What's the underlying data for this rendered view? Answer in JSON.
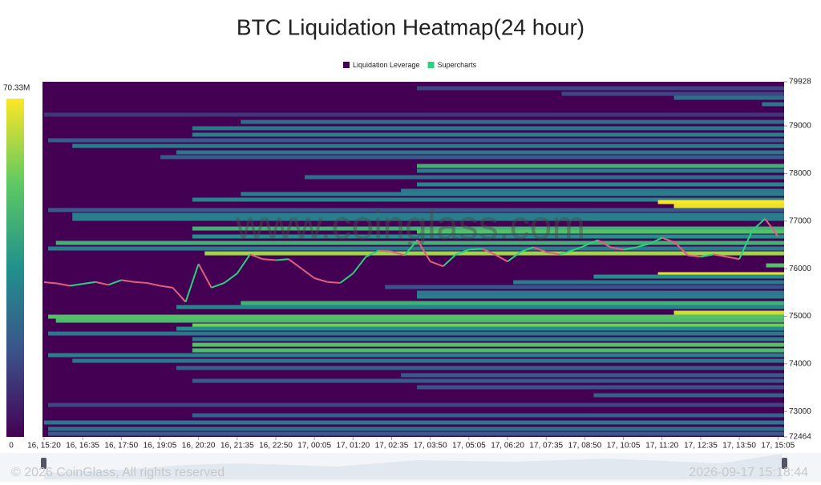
{
  "chart_data": {
    "type": "heatmap",
    "title": "BTC Liquidation Heatmap(24 hour)",
    "watermark": "www.coinglass.com",
    "footer": "© 2026 CoinGlass, All rights reserved",
    "timestamp": "2026-09-17 15:18:44",
    "xlim": [
      -3,
      1437
    ],
    "xticks": [
      {
        "value": 0,
        "label": "16, 15:20"
      },
      {
        "value": 75,
        "label": "16, 16:35"
      },
      {
        "value": 150,
        "label": "16, 17:50"
      },
      {
        "value": 225,
        "label": "16, 19:05"
      },
      {
        "value": 300,
        "label": "16, 20:20"
      },
      {
        "value": 375,
        "label": "16, 21:35"
      },
      {
        "value": 450,
        "label": "16, 22:50"
      },
      {
        "value": 525,
        "label": "17, 00:05"
      },
      {
        "value": 600,
        "label": "17, 01:20"
      },
      {
        "value": 675,
        "label": "17, 02:35"
      },
      {
        "value": 750,
        "label": "17, 03:50"
      },
      {
        "value": 825,
        "label": "17, 05:05"
      },
      {
        "value": 900,
        "label": "17, 06:20"
      },
      {
        "value": 975,
        "label": "17, 07:35"
      },
      {
        "value": 1050,
        "label": "17, 08:50"
      },
      {
        "value": 1125,
        "label": "17, 10:05"
      },
      {
        "value": 1200,
        "label": "17, 11:20"
      },
      {
        "value": 1275,
        "label": "17, 12:35"
      },
      {
        "value": 1350,
        "label": "17, 13:50"
      },
      {
        "value": 1425,
        "label": "17, 15:05"
      }
    ],
    "ylim": [
      72464,
      79928
    ],
    "yticks": [
      79928,
      79000,
      78000,
      77000,
      76000,
      75000,
      74000,
      73000,
      72464
    ],
    "colorbar": {
      "lim": [
        0,
        70.33
      ],
      "ticks": [
        0,
        {
          "value": 70.33,
          "label": "70.33M"
        }
      ]
    },
    "x": [
      0,
      25,
      50,
      75,
      100,
      125,
      150,
      175,
      200,
      225,
      250,
      275,
      300,
      325,
      350,
      375,
      400,
      425,
      450,
      475,
      500,
      525,
      550,
      575,
      600,
      625,
      650,
      675,
      700,
      725,
      750,
      775,
      800,
      825,
      850,
      875,
      900,
      925,
      950,
      975,
      1000,
      1025,
      1050,
      1075,
      1100,
      1125,
      1150,
      1175,
      1200,
      1225,
      1250,
      1275,
      1300,
      1325,
      1350,
      1375,
      1400,
      1425
    ],
    "up_color": "#2ad17f",
    "down_color": "#e0607e",
    "series": [
      {
        "name": "Liquidation Leverage",
        "color": "#440154",
        "bands": [
          {
            "price": 79793,
            "start": 724,
            "value": 15
          },
          {
            "price": 79675,
            "start": 1005,
            "value": 15
          },
          {
            "price": 79591,
            "start": 1223,
            "value": 25
          },
          {
            "price": 79456,
            "start": 1394,
            "value": 28
          },
          {
            "price": 79237,
            "start": 0,
            "value": 12
          },
          {
            "price": 79085,
            "start": 382,
            "value": 25
          },
          {
            "price": 78951,
            "start": 288,
            "value": 28
          },
          {
            "price": 78816,
            "start": 288,
            "value": 30
          },
          {
            "price": 78698,
            "start": 8,
            "value": 20
          },
          {
            "price": 78580,
            "start": 55,
            "value": 30
          },
          {
            "price": 78445,
            "start": 257,
            "value": 28
          },
          {
            "price": 78344,
            "start": 226,
            "value": 20
          },
          {
            "price": 78159,
            "start": 724,
            "value": 45
          },
          {
            "price": 78058,
            "start": 724,
            "value": 30
          },
          {
            "price": 77923,
            "start": 506,
            "value": 25
          },
          {
            "price": 77771,
            "start": 724,
            "value": 32
          },
          {
            "price": 77636,
            "start": 693,
            "value": 28
          },
          {
            "price": 77569,
            "start": 382,
            "value": 30
          },
          {
            "price": 77451,
            "start": 288,
            "value": 32
          },
          {
            "price": 77400,
            "start": 1192,
            "value": 70
          },
          {
            "price": 77316,
            "start": 1223,
            "value": 68
          },
          {
            "price": 77232,
            "start": 8,
            "value": 20
          },
          {
            "price": 77131,
            "start": 55,
            "value": 30
          },
          {
            "price": 77047,
            "start": 55,
            "value": 30
          },
          {
            "price": 76844,
            "start": 288,
            "value": 45
          },
          {
            "price": 76777,
            "start": 724,
            "value": 50
          },
          {
            "price": 76676,
            "start": 288,
            "value": 35
          },
          {
            "price": 76541,
            "start": 23,
            "value": 45
          },
          {
            "price": 76423,
            "start": 8,
            "value": 30
          },
          {
            "price": 76322,
            "start": 312,
            "value": 60
          },
          {
            "price": 76069,
            "start": 1402,
            "value": 50
          },
          {
            "price": 75884,
            "start": 1192,
            "value": 68
          },
          {
            "price": 75833,
            "start": 1067,
            "value": 35
          },
          {
            "price": 75715,
            "start": 911,
            "value": 30
          },
          {
            "price": 75614,
            "start": 662,
            "value": 18
          },
          {
            "price": 75496,
            "start": 724,
            "value": 28
          },
          {
            "price": 75412,
            "start": 724,
            "value": 30
          },
          {
            "price": 75277,
            "start": 382,
            "value": 45
          },
          {
            "price": 75193,
            "start": 257,
            "value": 32
          },
          {
            "price": 75075,
            "start": 1223,
            "value": 65
          },
          {
            "price": 74991,
            "start": 8,
            "value": 50
          },
          {
            "price": 74907,
            "start": 23,
            "value": 48
          },
          {
            "price": 74806,
            "start": 288,
            "value": 55
          },
          {
            "price": 74738,
            "start": 257,
            "value": 35
          },
          {
            "price": 74637,
            "start": 8,
            "value": 28
          },
          {
            "price": 74519,
            "start": 288,
            "value": 30
          },
          {
            "price": 74401,
            "start": 288,
            "value": 50
          },
          {
            "price": 74283,
            "start": 288,
            "value": 48
          },
          {
            "price": 74182,
            "start": 8,
            "value": 30
          },
          {
            "price": 74064,
            "start": 55,
            "value": 28
          },
          {
            "price": 73913,
            "start": 257,
            "value": 22
          },
          {
            "price": 73761,
            "start": 693,
            "value": 20
          },
          {
            "price": 73643,
            "start": 288,
            "value": 20
          },
          {
            "price": 73508,
            "start": 724,
            "value": 18
          },
          {
            "price": 73340,
            "start": 1067,
            "value": 22
          },
          {
            "price": 73137,
            "start": 8,
            "value": 15
          },
          {
            "price": 72918,
            "start": 288,
            "value": 22
          },
          {
            "price": 72767,
            "start": 0,
            "value": 28
          },
          {
            "price": 72632,
            "start": 8,
            "value": 26
          },
          {
            "price": 72531,
            "start": 8,
            "value": 20
          }
        ]
      },
      {
        "name": "Supercharts",
        "color": "#2ad17f",
        "values": [
          75716,
          75690,
          75640,
          75680,
          75720,
          75660,
          75760,
          75720,
          75700,
          75640,
          75600,
          75300,
          76100,
          75600,
          75700,
          75900,
          76300,
          76200,
          76180,
          76200,
          76000,
          75800,
          75720,
          75700,
          75900,
          76250,
          76380,
          76360,
          76280,
          76600,
          76150,
          76050,
          76300,
          76400,
          76420,
          76300,
          76150,
          76350,
          76450,
          76350,
          76300,
          76380,
          76480,
          76600,
          76450,
          76400,
          76450,
          76520,
          76650,
          76550,
          76280,
          76250,
          76300,
          76250,
          76200,
          76800,
          77050,
          76680
        ]
      }
    ]
  }
}
